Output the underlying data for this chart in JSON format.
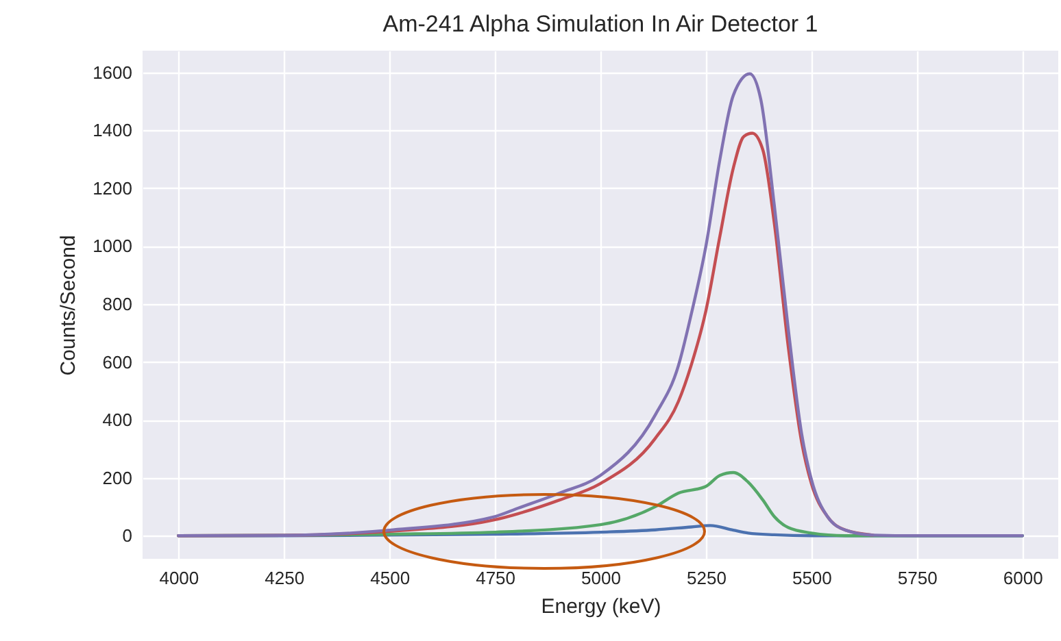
{
  "chart_data": {
    "type": "line",
    "title": "Am-241 Alpha Simulation In Air Detector 1",
    "xlabel": "Energy (keV)",
    "ylabel": "Counts/Second",
    "xlim": [
      3915,
      6085
    ],
    "ylim": [
      -80,
      1675
    ],
    "xticks": [
      4000,
      4250,
      4500,
      4750,
      5000,
      5250,
      5500,
      5750,
      6000
    ],
    "yticks": [
      0,
      200,
      400,
      600,
      800,
      1000,
      1200,
      1400,
      1600
    ],
    "grid": true,
    "marker": "none",
    "line_style": "solid",
    "series": [
      {
        "color": "#4c72b0",
        "x": [
          4000,
          4250,
          4500,
          4750,
          5000,
          5130,
          5215,
          5260,
          5315,
          5350,
          5412,
          5500,
          5600,
          6000
        ],
        "values": [
          0,
          0,
          2,
          5,
          12,
          20,
          30,
          35,
          19,
          9,
          3,
          0,
          0,
          0
        ]
      },
      {
        "color": "#55a868",
        "x": [
          4000,
          4250,
          4500,
          4750,
          5000,
          5130,
          5185,
          5250,
          5283,
          5315,
          5350,
          5385,
          5412,
          5445,
          5500,
          5580,
          6000
        ],
        "values": [
          0,
          1,
          5,
          12,
          38,
          100,
          147,
          170,
          208,
          218,
          185,
          123,
          66,
          28,
          9,
          0,
          0
        ]
      },
      {
        "color": "#c44e52",
        "x": [
          4000,
          4250,
          4500,
          4750,
          4805,
          4903,
          5000,
          5130,
          5185,
          5215,
          5250,
          5283,
          5315,
          5340,
          5360,
          5385,
          5412,
          5445,
          5477,
          5500,
          5538,
          5581,
          5646
        ],
        "values": [
          0,
          1,
          15,
          55,
          76,
          123,
          180,
          336,
          464,
          588,
          777,
          1033,
          1270,
          1379,
          1390,
          1332,
          1080,
          654,
          322,
          180,
          66,
          19,
          2
        ]
      },
      {
        "color": "#8172b2",
        "x": [
          4000,
          4250,
          4500,
          4750,
          4805,
          4903,
          5000,
          5130,
          5185,
          5215,
          5250,
          5283,
          5315,
          5354,
          5380,
          5412,
          5445,
          5477,
          5500,
          5538,
          5581,
          5646,
          5750,
          6000
        ],
        "values": [
          0,
          1,
          19,
          66,
          95,
          147,
          208,
          417,
          588,
          763,
          1000,
          1298,
          1521,
          1595,
          1507,
          1142,
          716,
          351,
          194,
          66,
          19,
          2,
          0,
          0
        ]
      }
    ]
  }
}
